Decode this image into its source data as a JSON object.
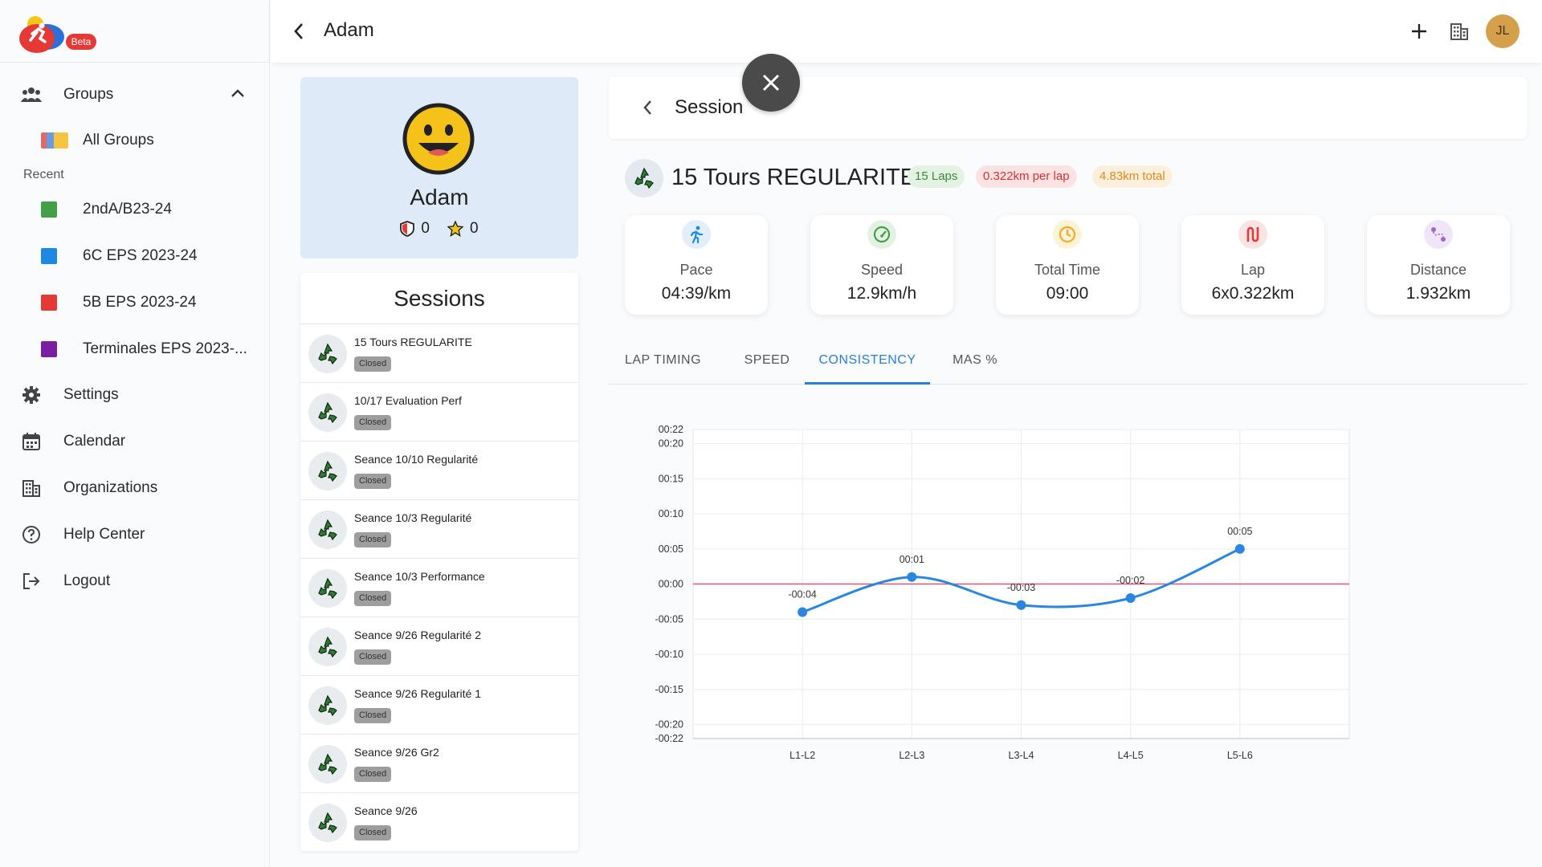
{
  "app": {
    "beta_badge": "Beta"
  },
  "sidebar": {
    "groups_label": "Groups",
    "all_groups_label": "All Groups",
    "recent_label": "Recent",
    "recent_groups": [
      {
        "label": "2ndA/B23-24",
        "color": "#43a047"
      },
      {
        "label": "6C EPS 2023-24",
        "color": "#1e88e5"
      },
      {
        "label": "5B EPS 2023-24",
        "color": "#e53935"
      },
      {
        "label": "Terminales EPS 2023-...",
        "color": "#7b1fa2"
      }
    ],
    "settings_label": "Settings",
    "calendar_label": "Calendar",
    "organizations_label": "Organizations",
    "help_label": "Help Center",
    "logout_label": "Logout"
  },
  "header": {
    "title": "Adam",
    "avatar_initials": "JL"
  },
  "profile": {
    "name": "Adam",
    "shields": "0",
    "stars": "0"
  },
  "sessions": {
    "title": "Sessions",
    "items": [
      {
        "name": "15 Tours REGULARITE",
        "status": "Closed"
      },
      {
        "name": "10/17 Evaluation Perf",
        "status": "Closed"
      },
      {
        "name": "Seance 10/10 Regularité",
        "status": "Closed"
      },
      {
        "name": "Seance 10/3 Regularité",
        "status": "Closed"
      },
      {
        "name": "Seance 10/3 Performance",
        "status": "Closed"
      },
      {
        "name": "Seance 9/26 Regularité 2",
        "status": "Closed"
      },
      {
        "name": "Seance 9/26 Regularité 1",
        "status": "Closed"
      },
      {
        "name": "Seance 9/26 Gr2",
        "status": "Closed"
      },
      {
        "name": "Seance 9/26",
        "status": "Closed"
      }
    ]
  },
  "session": {
    "header_title": "Session",
    "workout_title": "15 Tours REGULARITE",
    "chips": {
      "laps": "15 Laps",
      "per_lap": "0.322km per lap",
      "total": "4.83km total"
    },
    "stats": [
      {
        "label": "Pace",
        "value": "04:39/km",
        "icon": "runner-icon",
        "color": "#1e88e5"
      },
      {
        "label": "Speed",
        "value": "12.9km/h",
        "icon": "speedometer-icon",
        "color": "#43a047"
      },
      {
        "label": "Total Time",
        "value": "09:00",
        "icon": "clock-icon",
        "color": "#f9a825"
      },
      {
        "label": "Lap",
        "value": "6x0.322km",
        "icon": "lap-icon",
        "color": "#e53935"
      },
      {
        "label": "Distance",
        "value": "1.932km",
        "icon": "route-icon",
        "color": "#9c6bc9"
      }
    ],
    "tabs": [
      "LAP TIMING",
      "SPEED",
      "CONSISTENCY",
      "MAS %"
    ],
    "active_tab": "CONSISTENCY"
  },
  "chart_data": {
    "type": "line",
    "categories": [
      "L1-L2",
      "L2-L3",
      "L3-L4",
      "L4-L5",
      "L5-L6"
    ],
    "series": [
      {
        "values": [
          -4,
          1,
          -3,
          -2,
          5
        ],
        "labels": [
          "-00:04",
          "00:01",
          "-00:03",
          "-00:02",
          "00:05"
        ],
        "color": "#2a86e0"
      }
    ],
    "reference_line": {
      "y": 0,
      "color": "#e05570"
    },
    "y_ticks": [
      {
        "v": 22,
        "label": "00:22"
      },
      {
        "v": 20,
        "label": "00:20"
      },
      {
        "v": 15,
        "label": "00:15"
      },
      {
        "v": 10,
        "label": "00:10"
      },
      {
        "v": 5,
        "label": "00:05"
      },
      {
        "v": 0,
        "label": "00:00"
      },
      {
        "v": -5,
        "label": "-00:05"
      },
      {
        "v": -10,
        "label": "-00:10"
      },
      {
        "v": -15,
        "label": "-00:15"
      },
      {
        "v": -20,
        "label": "-00:20"
      },
      {
        "v": -22,
        "label": "-00:22"
      }
    ],
    "ylim": [
      -22,
      22
    ],
    "grid": true
  }
}
